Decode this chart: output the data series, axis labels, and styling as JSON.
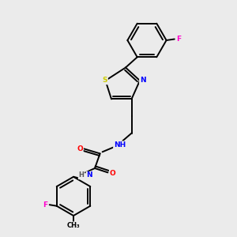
{
  "bg_color": "#ebebeb",
  "bond_color": "#000000",
  "atom_colors": {
    "N": "#0000ff",
    "O": "#ff0000",
    "S": "#cccc00",
    "F": "#ff00cc",
    "H": "#555555",
    "C": "#000000"
  },
  "figsize": [
    3.0,
    3.0
  ],
  "dpi": 100,
  "lw": 1.4
}
